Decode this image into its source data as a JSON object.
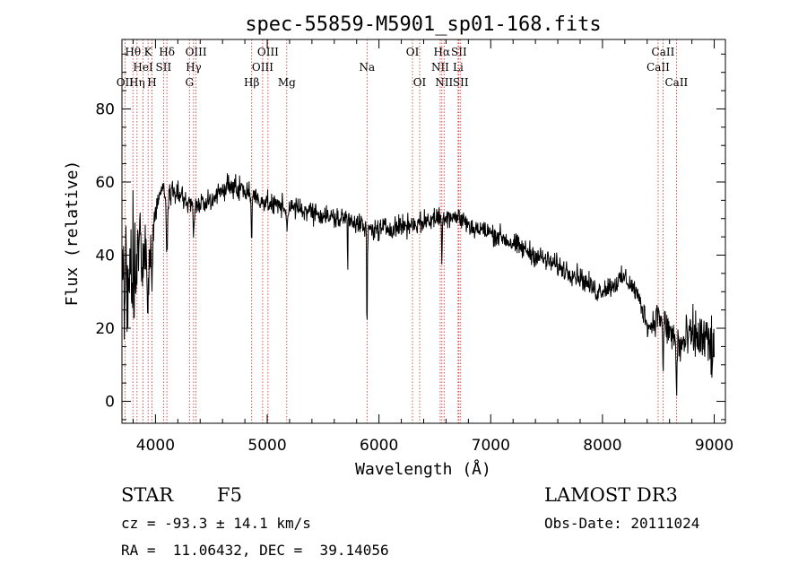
{
  "chart_data": {
    "type": "line",
    "title": "spec-55859-M5901_sp01-168.fits",
    "xlabel": "Wavelength (Å)",
    "ylabel": "Flux (relative)",
    "xlim": [
      3700,
      9100
    ],
    "ylim": [
      -6,
      99
    ],
    "xticks": [
      4000,
      5000,
      6000,
      7000,
      8000,
      9000
    ],
    "yticks": [
      0,
      20,
      40,
      60,
      80
    ],
    "line_color": "#000000",
    "marker_color": "#cc2a2a",
    "lines": [
      {
        "label": "OII",
        "wave": 3727,
        "row": 3
      },
      {
        "label": "Hθ",
        "wave": 3798,
        "row": 1
      },
      {
        "label": "Hη",
        "wave": 3835,
        "row": 3
      },
      {
        "label": "HeI",
        "wave": 3889,
        "row": 2
      },
      {
        "label": "K",
        "wave": 3934,
        "row": 1
      },
      {
        "label": "H",
        "wave": 3969,
        "row": 3
      },
      {
        "label": "SII",
        "wave": 4072,
        "row": 2
      },
      {
        "label": "Hδ",
        "wave": 4102,
        "row": 1
      },
      {
        "label": "G",
        "wave": 4304,
        "row": 3
      },
      {
        "label": "Hγ",
        "wave": 4341,
        "row": 2
      },
      {
        "label": "OIII",
        "wave": 4363,
        "row": 1
      },
      {
        "label": "Hβ",
        "wave": 4861,
        "row": 3
      },
      {
        "label": "OIII",
        "wave": 4959,
        "row": 2
      },
      {
        "label": "OIII",
        "wave": 5007,
        "row": 1
      },
      {
        "label": "Mg",
        "wave": 5175,
        "row": 3
      },
      {
        "label": "Na",
        "wave": 5893,
        "row": 2
      },
      {
        "label": "OI",
        "wave": 6300,
        "row": 1
      },
      {
        "label": "OI",
        "wave": 6364,
        "row": 3
      },
      {
        "label": "NII",
        "wave": 6548,
        "row": 2
      },
      {
        "label": "Hα",
        "wave": 6563,
        "row": 1
      },
      {
        "label": "NII",
        "wave": 6583,
        "row": 3
      },
      {
        "label": "Li",
        "wave": 6708,
        "row": 2
      },
      {
        "label": "SII",
        "wave": 6716,
        "row": 1
      },
      {
        "label": "SII",
        "wave": 6731,
        "row": 3
      },
      {
        "label": "CaII",
        "wave": 8498,
        "row": 2
      },
      {
        "label": "CaII",
        "wave": 8542,
        "row": 1
      },
      {
        "label": "CaII",
        "wave": 8662,
        "row": 3
      }
    ],
    "continuum": [
      [
        3700,
        30
      ],
      [
        3780,
        34
      ],
      [
        3850,
        40
      ],
      [
        3950,
        42
      ],
      [
        4000,
        52
      ],
      [
        4050,
        57
      ],
      [
        4100,
        57
      ],
      [
        4200,
        57
      ],
      [
        4300,
        54
      ],
      [
        4450,
        54
      ],
      [
        4600,
        58
      ],
      [
        4720,
        59
      ],
      [
        4850,
        57
      ],
      [
        5000,
        54
      ],
      [
        5200,
        53
      ],
      [
        5400,
        52
      ],
      [
        5600,
        50
      ],
      [
        5750,
        50
      ],
      [
        5900,
        47
      ],
      [
        6000,
        47
      ],
      [
        6200,
        48
      ],
      [
        6400,
        49
      ],
      [
        6600,
        51
      ],
      [
        6750,
        50
      ],
      [
        6800,
        48
      ],
      [
        6900,
        47
      ],
      [
        7100,
        45
      ],
      [
        7200,
        43
      ],
      [
        7400,
        40
      ],
      [
        7600,
        37
      ],
      [
        7800,
        34
      ],
      [
        7950,
        30
      ],
      [
        8100,
        32
      ],
      [
        8200,
        34
      ],
      [
        8300,
        30
      ],
      [
        8420,
        20
      ],
      [
        8500,
        24
      ],
      [
        8600,
        19
      ],
      [
        8700,
        15
      ],
      [
        8800,
        18
      ],
      [
        8900,
        17
      ],
      [
        9000,
        14
      ]
    ],
    "absorptions": [
      {
        "wave": 3934,
        "depth": 14,
        "width": 8
      },
      {
        "wave": 3969,
        "depth": 10,
        "width": 7
      },
      {
        "wave": 4102,
        "depth": 17,
        "width": 6
      },
      {
        "wave": 4341,
        "depth": 10,
        "width": 5
      },
      {
        "wave": 4861,
        "depth": 14,
        "width": 4
      },
      {
        "wave": 5175,
        "depth": 5,
        "width": 6
      },
      {
        "wave": 5720,
        "depth": 15,
        "width": 2
      },
      {
        "wave": 5893,
        "depth": 30,
        "width": 3
      },
      {
        "wave": 6563,
        "depth": 14,
        "width": 3
      },
      {
        "wave": 8542,
        "depth": 12,
        "width": 5
      },
      {
        "wave": 8662,
        "depth": 15,
        "width": 4
      }
    ],
    "noise": {
      "blue_edge": 26,
      "blue_end": 3990,
      "normal": 3,
      "red_start": 8350,
      "red": 9,
      "samples": 1500
    }
  },
  "info": {
    "object_class": "STAR",
    "subclass": "F5",
    "survey": "LAMOST DR3",
    "redshift_line": "cz = -93.3 ± 14.1 km/s",
    "obs_date": "Obs-Date: 20111024",
    "coords": "RA =  11.06432, DEC =  39.14056"
  }
}
